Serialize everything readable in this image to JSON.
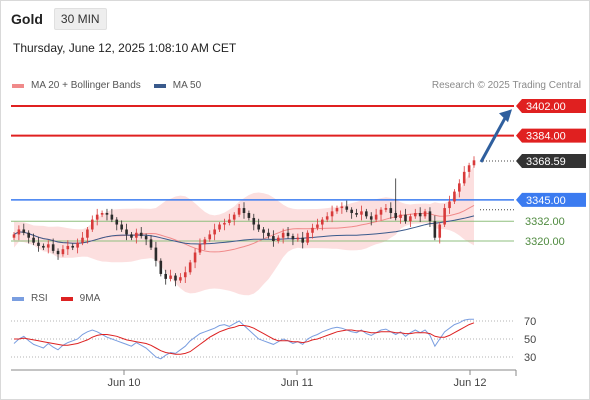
{
  "header": {
    "title": "Gold",
    "timeframe": "30 MIN"
  },
  "datetime": "Thursday, June 12, 2025 1:08:10 AM CET",
  "legend": {
    "ma20": {
      "label": "MA 20 + Bollinger Bands",
      "color": "#f08a8a"
    },
    "ma50": {
      "label": "MA 50",
      "color": "#3a5a8c"
    }
  },
  "credit": "Research © 2025 Trading Central",
  "rsi_legend": {
    "rsi": {
      "label": "RSI",
      "color": "#7a9ee0"
    },
    "ma": {
      "label": "9MA",
      "color": "#dd2222"
    }
  },
  "levels": [
    {
      "value": 3402.0,
      "label": "3402.00",
      "kind": "resistance"
    },
    {
      "value": 3384.0,
      "label": "3384.00",
      "kind": "resistance"
    },
    {
      "value": 3368.59,
      "label": "3368.59",
      "kind": "last"
    },
    {
      "value": 3345.0,
      "label": "3345.00",
      "kind": "pivot"
    },
    {
      "value": 3332.0,
      "label": "3332.00",
      "kind": "support"
    },
    {
      "value": 3320.0,
      "label": "3320.00",
      "kind": "support"
    }
  ],
  "colors": {
    "up": "#d83a3a",
    "down": "#2b2b2b",
    "resistance": "#e02020",
    "pivot": "#3b7bf0",
    "support": "#8fbf7f",
    "last": "#333333",
    "band": "#fbd4d4",
    "arrow": "#2f5f9e"
  },
  "xaxis": {
    "labels": [
      "Jun 10",
      "Jun 11",
      "Jun 12"
    ]
  },
  "rsi_axis": {
    "labels": [
      "70",
      "50",
      "30"
    ]
  },
  "chart_data": {
    "type": "candlestick",
    "price_range": [
      3275,
      3410
    ],
    "closes": [
      3324,
      3327,
      3325,
      3322,
      3319,
      3317,
      3316,
      3318,
      3314,
      3312,
      3315,
      3317,
      3316,
      3319,
      3322,
      3327,
      3333,
      3336,
      3337,
      3336,
      3333,
      3330,
      3327,
      3324,
      3322,
      3325,
      3323,
      3321,
      3316,
      3308,
      3300,
      3297,
      3299,
      3296,
      3298,
      3301,
      3307,
      3313,
      3318,
      3321,
      3324,
      3327,
      3330,
      3331,
      3333,
      3336,
      3340,
      3337,
      3334,
      3330,
      3327,
      3325,
      3323,
      3320,
      3322,
      3325,
      3323,
      3321,
      3322,
      3319,
      3325,
      3328,
      3330,
      3333,
      3335,
      3338,
      3340,
      3341,
      3339,
      3337,
      3336,
      3338,
      3335,
      3333,
      3336,
      3339,
      3340,
      3337,
      3334,
      3336,
      3332,
      3335,
      3337,
      3335,
      3338,
      3332,
      3322,
      3330,
      3340,
      3344,
      3350,
      3355,
      3362,
      3366,
      3369
    ],
    "rsi": [
      45,
      50,
      53,
      48,
      44,
      42,
      40,
      45,
      41,
      38,
      43,
      46,
      48,
      50,
      55,
      58,
      60,
      58,
      55,
      52,
      50,
      48,
      46,
      44,
      42,
      46,
      43,
      40,
      35,
      30,
      28,
      32,
      35,
      34,
      38,
      42,
      48,
      52,
      56,
      58,
      60,
      62,
      65,
      66,
      64,
      67,
      70,
      65,
      60,
      55,
      50,
      48,
      46,
      44,
      47,
      50,
      48,
      45,
      47,
      44,
      50,
      53,
      55,
      58,
      60,
      62,
      63,
      62,
      60,
      58,
      57,
      60,
      56,
      54,
      57,
      60,
      61,
      58,
      55,
      58,
      53,
      57,
      60,
      57,
      60,
      54,
      42,
      50,
      58,
      62,
      66,
      68,
      71,
      72,
      72
    ],
    "rsi_ma": [
      50,
      50,
      51,
      50,
      49,
      48,
      47,
      46,
      45,
      44,
      43,
      43,
      44,
      45,
      47,
      49,
      52,
      54,
      55,
      55,
      54,
      53,
      51,
      49,
      48,
      47,
      46,
      45,
      43,
      40,
      37,
      35,
      34,
      33,
      33,
      34,
      36,
      40,
      44,
      48,
      52,
      55,
      58,
      60,
      62,
      63,
      65,
      65,
      64,
      62,
      59,
      56,
      53,
      50,
      48,
      48,
      48,
      47,
      47,
      46,
      47,
      49,
      50,
      52,
      54,
      56,
      58,
      59,
      60,
      60,
      59,
      59,
      58,
      57,
      57,
      58,
      58,
      58,
      57,
      57,
      56,
      56,
      57,
      57,
      57,
      56,
      53,
      52,
      52,
      54,
      57,
      60,
      63,
      66,
      68
    ],
    "rsi_levels": [
      70,
      50,
      30
    ]
  }
}
